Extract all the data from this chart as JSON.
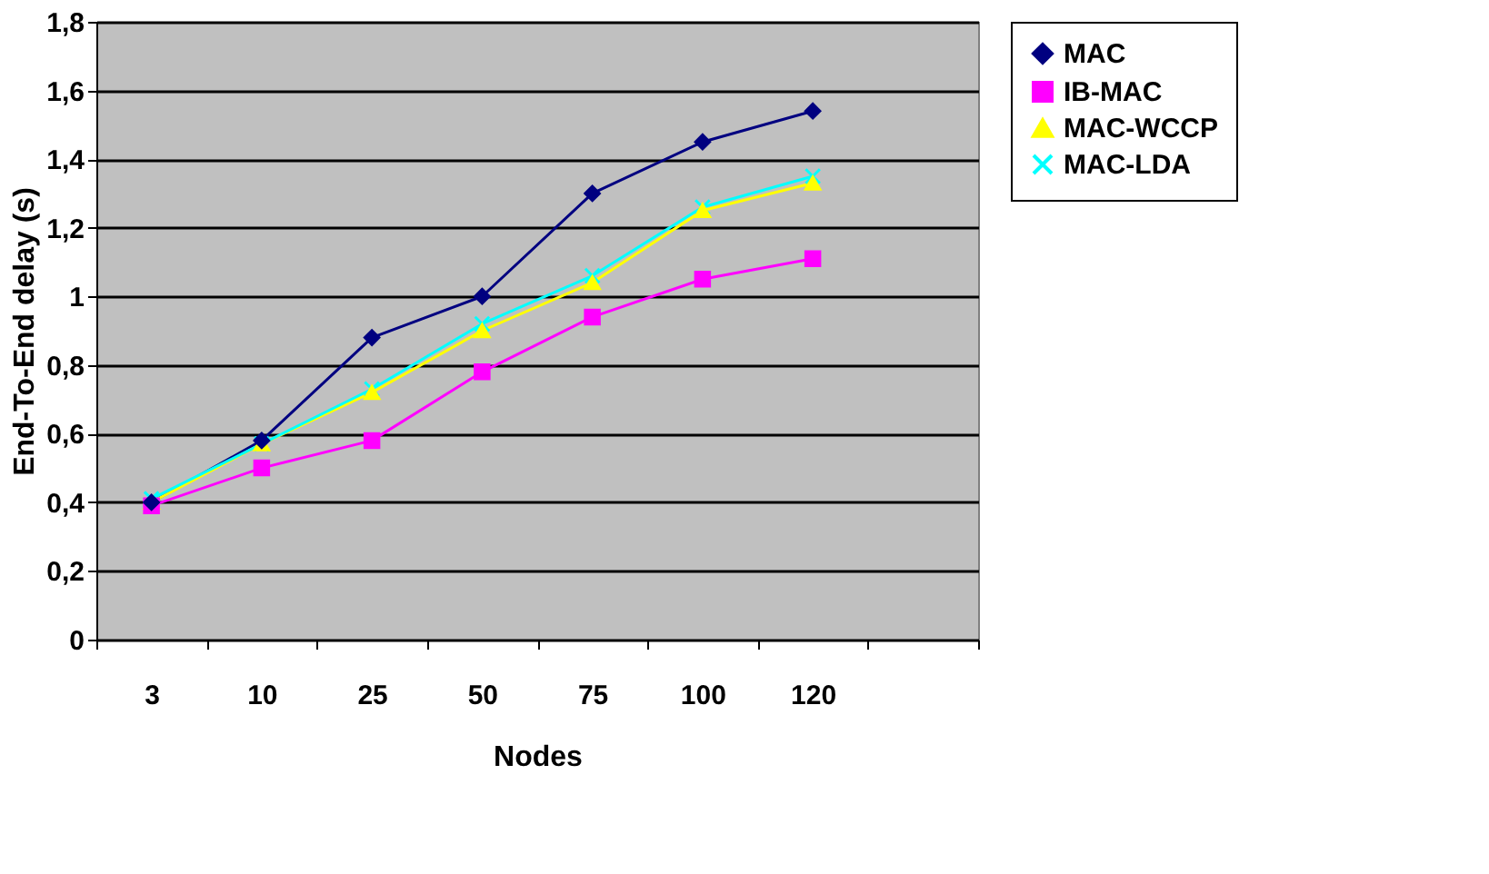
{
  "chart_data": {
    "type": "line",
    "xlabel": "Nodes",
    "ylabel": "End-To-End delay (s)",
    "categories": [
      "3",
      "10",
      "25",
      "50",
      "75",
      "100",
      "120",
      null
    ],
    "series": [
      {
        "name": "MAC",
        "color": "#000080",
        "marker": "diamond",
        "values": [
          0.4,
          0.58,
          0.88,
          1.0,
          1.3,
          1.45,
          1.54,
          null
        ]
      },
      {
        "name": "IB-MAC",
        "color": "#ff00ff",
        "marker": "square",
        "values": [
          0.39,
          0.5,
          0.58,
          0.78,
          0.94,
          1.05,
          1.11,
          null
        ]
      },
      {
        "name": "MAC-WCCP",
        "color": "#ffff00",
        "marker": "triangle",
        "values": [
          0.4,
          0.57,
          0.72,
          0.9,
          1.04,
          1.25,
          1.33,
          null
        ]
      },
      {
        "name": "MAC-LDA",
        "color": "#00ffff",
        "marker": "cross",
        "values": [
          0.41,
          0.57,
          0.73,
          0.92,
          1.06,
          1.26,
          1.35,
          null
        ]
      }
    ],
    "ylim": [
      0,
      1.8
    ],
    "yticks": [
      0,
      {
        "value": 0.2,
        "label": "0,2"
      },
      {
        "value": 0.4,
        "label": "0,4"
      },
      {
        "value": 0.6,
        "label": "0,6"
      },
      {
        "value": 0.8,
        "label": "0,8"
      },
      1,
      {
        "value": 1.2,
        "label": "1,2"
      },
      {
        "value": 1.4,
        "label": "1,4"
      },
      {
        "value": 1.6,
        "label": "1,6"
      },
      {
        "value": 1.8,
        "label": "1,8"
      }
    ],
    "grid": "y",
    "legend": "right",
    "line_style": "solid"
  }
}
